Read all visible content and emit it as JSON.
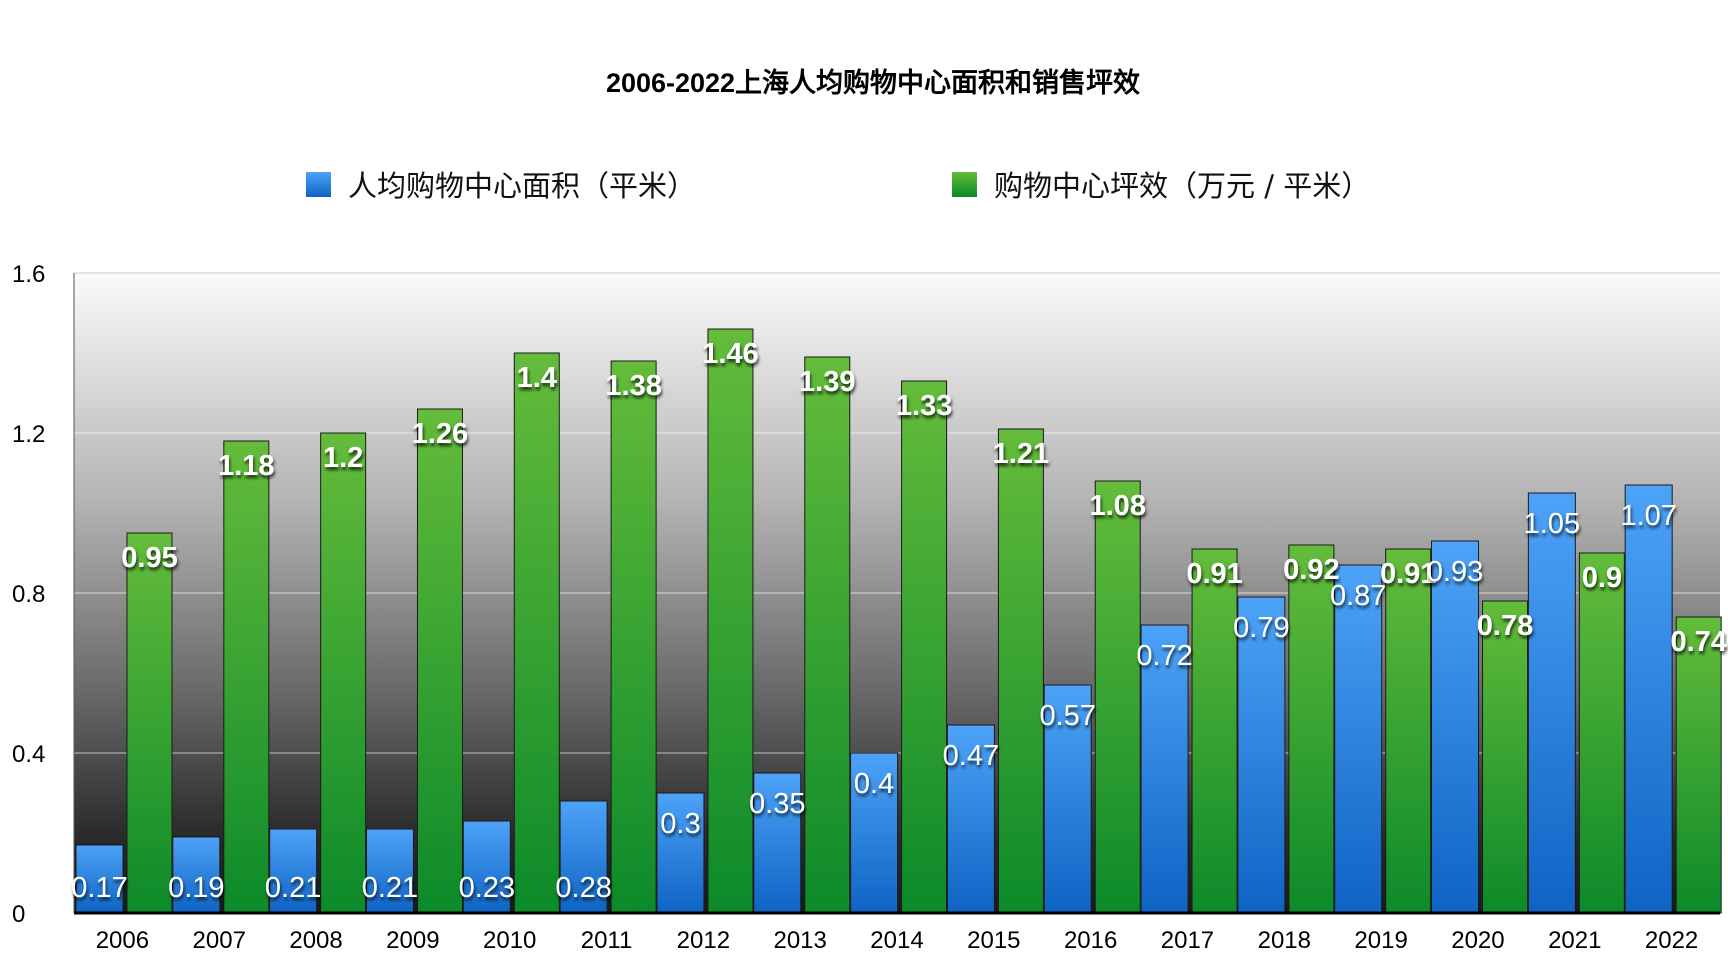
{
  "chart_data": {
    "type": "bar",
    "title": "2006-2022上海人均购物中心面积和销售坪效",
    "xlabel": "",
    "ylabel": "",
    "ylim": [
      0,
      1.6
    ],
    "yticks": [
      "0",
      "0.4",
      "0.8",
      "1.2",
      "1.6"
    ],
    "ytick_values": [
      0,
      0.4,
      0.8,
      1.2,
      1.6
    ],
    "grid": true,
    "legend_position": "top",
    "categories": [
      "2006",
      "2007",
      "2008",
      "2009",
      "2010",
      "2011",
      "2012",
      "2013",
      "2014",
      "2015",
      "2016",
      "2017",
      "2018",
      "2019",
      "2020",
      "2021",
      "2022"
    ],
    "series": [
      {
        "name": "人均购物中心面积（平米）",
        "color_top": "#4da3f7",
        "color_bottom": "#0f63c4",
        "values": [
          0.17,
          0.19,
          0.21,
          0.21,
          0.23,
          0.28,
          0.3,
          0.35,
          0.4,
          0.47,
          0.57,
          0.72,
          0.79,
          0.87,
          0.93,
          1.05,
          1.07
        ],
        "labels": [
          "0.17",
          "0.19",
          "0.21",
          "0.21",
          "0.23",
          "0.28",
          "0.3",
          "0.35",
          "0.4",
          "0.47",
          "0.57",
          "0.72",
          "0.79",
          "0.87",
          "0.93",
          "1.05",
          "1.07"
        ]
      },
      {
        "name": "购物中心坪效（万元 / 平米）",
        "color_top": "#64bc3a",
        "color_bottom": "#0c8a2a",
        "values": [
          0.95,
          1.18,
          1.2,
          1.26,
          1.4,
          1.38,
          1.46,
          1.39,
          1.33,
          1.21,
          1.08,
          0.91,
          0.92,
          0.91,
          0.78,
          0.9,
          0.74
        ],
        "labels": [
          "0.95",
          "1.18",
          "1.2",
          "1.26",
          "1.4",
          "1.38",
          "1.46",
          "1.39",
          "1.33",
          "1.21",
          "1.08",
          "0.91",
          "0.92",
          "0.91",
          "0.78",
          "0.9",
          "0.74"
        ]
      }
    ]
  }
}
